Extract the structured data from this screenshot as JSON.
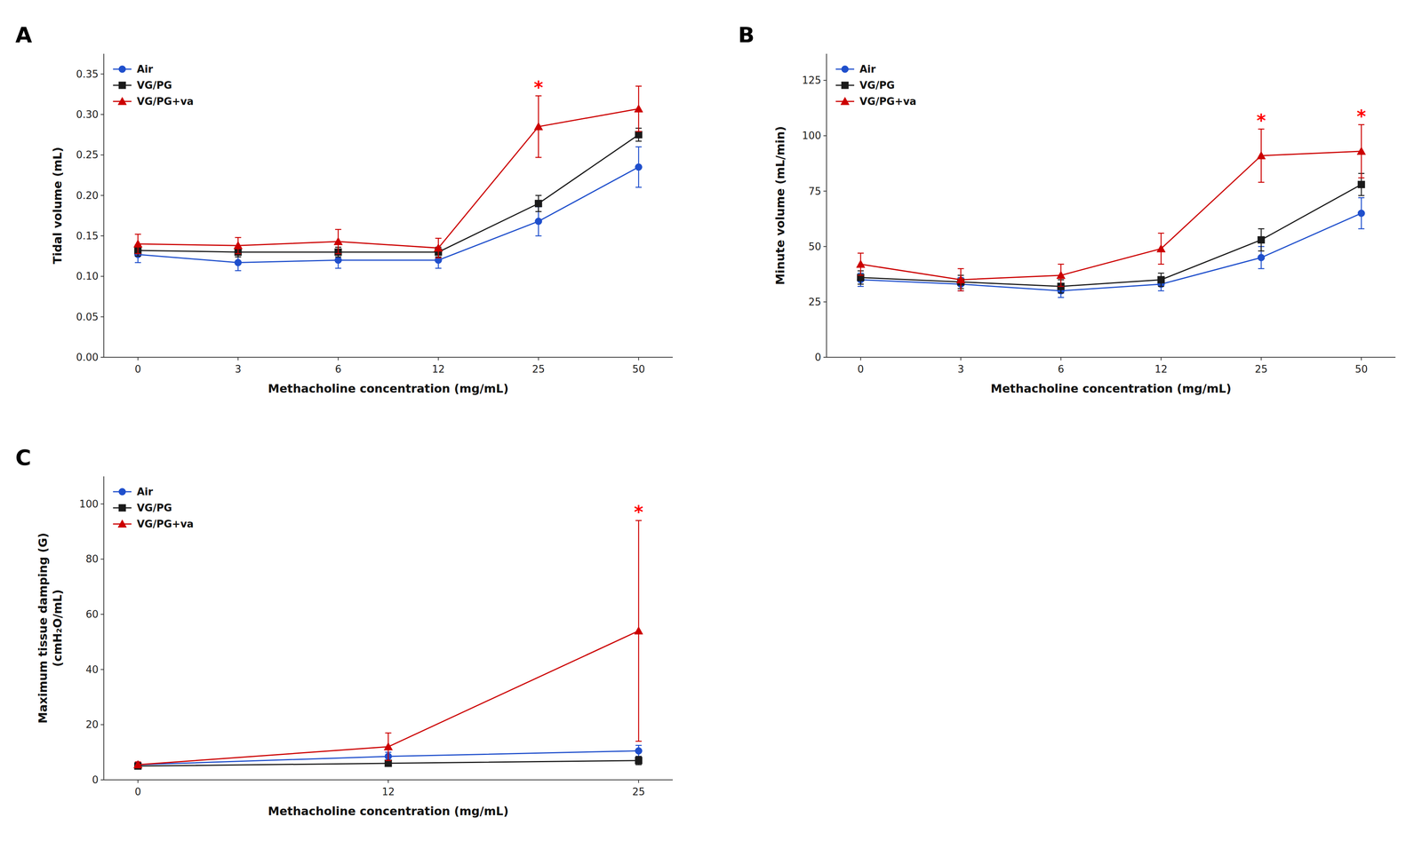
{
  "chart_data": [
    {
      "type": "line",
      "title": "A",
      "xlabel": "Methacholine concentration (mg/mL)",
      "ylabel": "Tidal volume (mL)",
      "categories": [
        "0",
        "3",
        "6",
        "12",
        "25",
        "50"
      ],
      "series": [
        {
          "name": "Air",
          "color": "#1F4FCC",
          "marker": "circle",
          "values": [
            0.127,
            0.117,
            0.12,
            0.12,
            0.168,
            0.235
          ],
          "errors": [
            0.01,
            0.01,
            0.01,
            0.01,
            0.018,
            0.025
          ]
        },
        {
          "name": "VG/PG",
          "color": "#1A1A1A",
          "marker": "square",
          "values": [
            0.132,
            0.13,
            0.13,
            0.13,
            0.19,
            0.275
          ],
          "errors": [
            0.007,
            0.006,
            0.006,
            0.006,
            0.01,
            0.008
          ]
        },
        {
          "name": "VG/PG+va",
          "color": "#CC0000",
          "marker": "triangle",
          "values": [
            0.14,
            0.138,
            0.143,
            0.135,
            0.285,
            0.307
          ],
          "errors": [
            0.012,
            0.01,
            0.015,
            0.012,
            0.038,
            0.028
          ]
        }
      ],
      "ylim": [
        0.0,
        0.375
      ],
      "yticks": [
        {
          "value": 0.0,
          "label": "0.00"
        },
        {
          "value": 0.05,
          "label": "0.05"
        },
        {
          "value": 0.1,
          "label": "0.10"
        },
        {
          "value": 0.15,
          "label": "0.15"
        },
        {
          "value": 0.2,
          "label": "0.20"
        },
        {
          "value": 0.25,
          "label": "0.25"
        },
        {
          "value": 0.3,
          "label": "0.30"
        },
        {
          "value": 0.35,
          "label": "0.35"
        }
      ],
      "annotations": [
        {
          "text": "*",
          "category": "25",
          "series": "VG/PG+va",
          "color": "red"
        }
      ],
      "legend": "upper left",
      "grid": false
    },
    {
      "type": "line",
      "title": "B",
      "xlabel": "Methacholine concentration (mg/mL)",
      "ylabel": "Minute volume (mL/min)",
      "categories": [
        "0",
        "3",
        "6",
        "12",
        "25",
        "50"
      ],
      "series": [
        {
          "name": "Air",
          "color": "#1F4FCC",
          "marker": "circle",
          "values": [
            35,
            33,
            30,
            33,
            45,
            65
          ],
          "errors": [
            3,
            3,
            3,
            3,
            5,
            7
          ]
        },
        {
          "name": "VG/PG",
          "color": "#1A1A1A",
          "marker": "square",
          "values": [
            36,
            34,
            32,
            35,
            53,
            78
          ],
          "errors": [
            3,
            3,
            3,
            3,
            5,
            5
          ]
        },
        {
          "name": "VG/PG+va",
          "color": "#CC0000",
          "marker": "triangle",
          "values": [
            42,
            35,
            37,
            49,
            91,
            93
          ],
          "errors": [
            5,
            5,
            5,
            7,
            12,
            12
          ]
        }
      ],
      "ylim": [
        0,
        137
      ],
      "yticks": [
        0,
        25,
        50,
        75,
        100,
        125
      ],
      "annotations": [
        {
          "text": "*",
          "category": "25",
          "series": "VG/PG+va",
          "color": "red"
        },
        {
          "text": "*",
          "category": "50",
          "series": "VG/PG+va",
          "color": "red"
        }
      ],
      "legend": "upper left",
      "grid": false
    },
    {
      "type": "line",
      "title": "C",
      "xlabel": "Methacholine concentration (mg/mL)",
      "ylabel": "Maximum tissue damping (G)\n(cmH₂O/mL)",
      "categories": [
        "0",
        "12",
        "25"
      ],
      "series": [
        {
          "name": "Air",
          "color": "#1F4FCC",
          "marker": "circle",
          "values": [
            5.5,
            8.5,
            10.5
          ],
          "errors": [
            0.8,
            1.5,
            2.0
          ]
        },
        {
          "name": "VG/PG",
          "color": "#1A1A1A",
          "marker": "square",
          "values": [
            5.0,
            6.0,
            7.0
          ],
          "errors": [
            0.5,
            1.0,
            1.5
          ]
        },
        {
          "name": "VG/PG+va",
          "color": "#CC0000",
          "marker": "triangle",
          "values": [
            5.5,
            12.0,
            54.0
          ],
          "errors": [
            1.0,
            5.0,
            40.0
          ]
        }
      ],
      "ylim": [
        0,
        110
      ],
      "yticks": [
        0,
        20,
        40,
        60,
        80,
        100
      ],
      "annotations": [
        {
          "text": "*",
          "category": "25",
          "series": "VG/PG+va",
          "color": "red"
        }
      ],
      "legend": "upper left",
      "grid": false
    }
  ]
}
